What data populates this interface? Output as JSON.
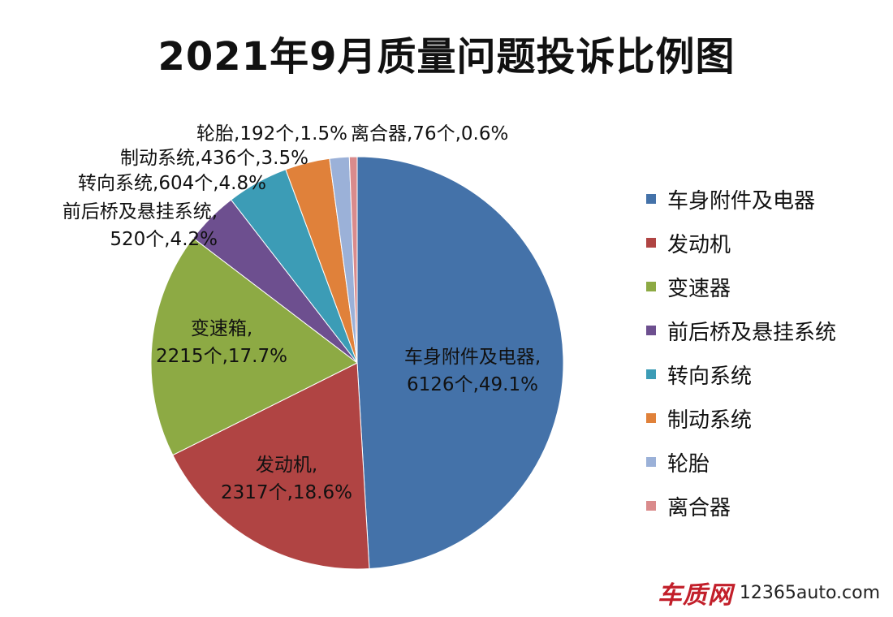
{
  "chart_data": {
    "type": "pie",
    "title": "2021年9月质量问题投诉比例图",
    "slices": [
      {
        "name": "车身附件及电器",
        "label_name": "车身附件及电器,",
        "count": 6126,
        "count_text": "6126个",
        "percent": 49.1,
        "percent_text": "49.1%",
        "color": "#4472A9"
      },
      {
        "name": "发动机",
        "label_name": "发动机,",
        "count": 2317,
        "count_text": "2317个",
        "percent": 18.6,
        "percent_text": "18.6%",
        "color": "#B04443"
      },
      {
        "name": "变速器",
        "label_name": "变速箱,",
        "count": 2215,
        "count_text": "2215个",
        "percent": 17.7,
        "percent_text": "17.7%",
        "color": "#8DAA44"
      },
      {
        "name": "前后桥及悬挂系统",
        "label_name": "前后桥及悬挂系统,",
        "count": 520,
        "count_text": "520个",
        "percent": 4.2,
        "percent_text": "4.2%",
        "color": "#6D4F8F"
      },
      {
        "name": "转向系统",
        "label_name": "转向系统,",
        "count": 604,
        "count_text": "604个",
        "percent": 4.8,
        "percent_text": "4.8%",
        "color": "#3C9CB6"
      },
      {
        "name": "制动系统",
        "label_name": "制动系统,",
        "count": 436,
        "count_text": "436个",
        "percent": 3.5,
        "percent_text": "3.5%",
        "color": "#E0813A"
      },
      {
        "name": "轮胎",
        "label_name": "轮胎,",
        "count": 192,
        "count_text": "192个",
        "percent": 1.5,
        "percent_text": "1.5%",
        "color": "#9BB1D8"
      },
      {
        "name": "离合器",
        "label_name": "离合器,",
        "count": 76,
        "count_text": "76个",
        "percent": 0.6,
        "percent_text": "0.6%",
        "color": "#DA8B8C"
      }
    ],
    "legend_position": "right"
  },
  "watermark": {
    "logo_text": "车质网",
    "url": "12365auto.com"
  }
}
